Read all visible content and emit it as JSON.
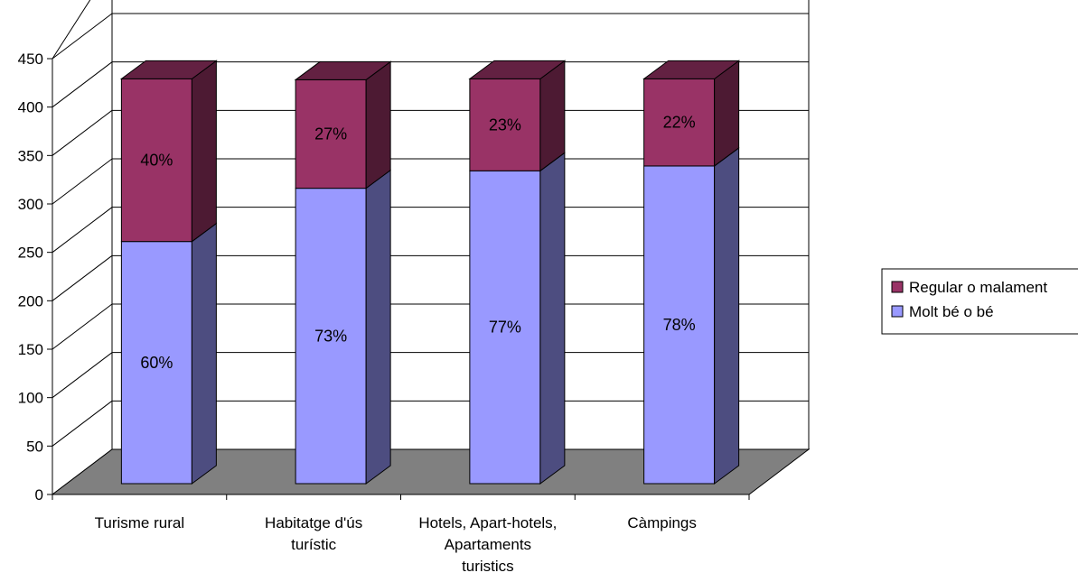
{
  "chart_data": {
    "type": "bar",
    "stacked": true,
    "three_d": true,
    "title": "",
    "xlabel": "",
    "ylabel": "",
    "ylim": [
      0,
      450
    ],
    "yticks": [
      0,
      50,
      100,
      150,
      200,
      250,
      300,
      350,
      400,
      450
    ],
    "ytick_labels": [
      "0",
      "50",
      "100",
      "150",
      "200",
      "250",
      "300",
      "350",
      "400",
      "450"
    ],
    "grid": true,
    "legend_position": "right",
    "categories": [
      [
        "Turisme rural"
      ],
      [
        "Habitatge d'ús",
        "turístic"
      ],
      [
        "Hotels, Apart-hotels,",
        "Apartaments",
        "turistics"
      ],
      [
        "Càmpings"
      ]
    ],
    "series": [
      {
        "name": "Molt bé o bé",
        "color": "#9999ff",
        "values": [
          250,
          305,
          323,
          328
        ],
        "data_labels": [
          "60%",
          "73%",
          "77%",
          "78%"
        ]
      },
      {
        "name": "Regular o malament",
        "color": "#993366",
        "values": [
          168,
          112,
          95,
          90
        ],
        "data_labels": [
          "40%",
          "27%",
          "23%",
          "22%"
        ]
      }
    ],
    "legend_order": [
      "Regular o malament",
      "Molt bé o bé"
    ],
    "colors": {
      "floor": "#808080",
      "wall": "#ffffff",
      "grid": "#000000"
    }
  }
}
